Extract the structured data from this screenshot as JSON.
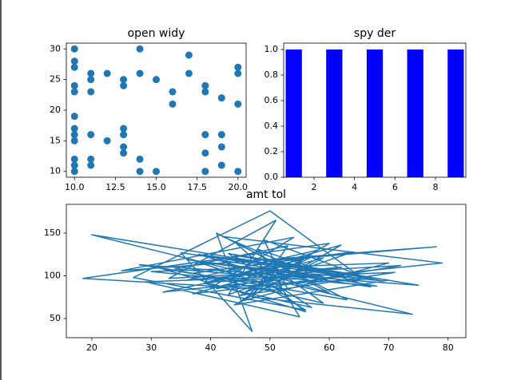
{
  "chart_data": [
    {
      "type": "scatter",
      "title": "open widy",
      "color": "#1f77b4",
      "x": [
        10,
        10,
        10,
        10,
        10,
        10,
        10,
        10,
        10,
        10,
        10,
        10,
        11,
        11,
        11,
        11,
        11,
        11,
        12,
        12,
        13,
        13,
        13,
        13,
        13,
        13,
        14,
        14,
        14,
        14,
        15,
        15,
        16,
        16,
        17,
        17,
        18,
        18,
        18,
        18,
        18,
        19,
        19,
        19,
        19,
        20,
        20,
        20,
        20
      ],
      "y": [
        30,
        28,
        27,
        24,
        23,
        19,
        17,
        16,
        15,
        12,
        11,
        10,
        26,
        25,
        23,
        16,
        12,
        11,
        26,
        15,
        25,
        24,
        17,
        16,
        14,
        13,
        30,
        26,
        12,
        10,
        25,
        10,
        23,
        21,
        29,
        26,
        24,
        23,
        16,
        13,
        10,
        22,
        16,
        14,
        11,
        27,
        26,
        21,
        10
      ],
      "xlim": [
        9.5,
        20.5
      ],
      "xticks": [
        {
          "value": 10,
          "label": "10.0"
        },
        {
          "value": 12.5,
          "label": "12.5"
        },
        {
          "value": 15,
          "label": "15.0"
        },
        {
          "value": 17.5,
          "label": "17.5"
        },
        {
          "value": 20,
          "label": "20.0"
        }
      ],
      "ylim": [
        9.05,
        30.95
      ],
      "yticks": [
        10,
        15,
        20,
        25,
        30
      ]
    },
    {
      "type": "bar",
      "title": "spy der",
      "color": "#0000ff",
      "x": [
        1,
        3,
        5,
        7,
        9
      ],
      "values": [
        1,
        1,
        1,
        1,
        1
      ],
      "xlim": [
        0.5,
        9.5
      ],
      "xticks": [
        2,
        4,
        6,
        8
      ],
      "ylim": [
        0,
        1.05
      ],
      "yticks": [
        {
          "value": 0,
          "label": "0.0"
        },
        {
          "value": 0.2,
          "label": "0.2"
        },
        {
          "value": 0.4,
          "label": "0.4"
        },
        {
          "value": 0.6,
          "label": "0.6"
        },
        {
          "value": 0.8,
          "label": "0.8"
        },
        {
          "value": 1,
          "label": "1.0"
        }
      ]
    },
    {
      "type": "line",
      "title": "amt tol",
      "color": "#1f77b4",
      "x": [
        48,
        55,
        41,
        62,
        36,
        58,
        45,
        70,
        30,
        52,
        44,
        60,
        38,
        65,
        50,
        27,
        56,
        42,
        68,
        34,
        53,
        47,
        74,
        20,
        61,
        39,
        57,
        46,
        72,
        33,
        51,
        43,
        64,
        37,
        59,
        49,
        78,
        25,
        54,
        40,
        66,
        35,
        47,
        41,
        63,
        31,
        56,
        44,
        69,
        38,
        52,
        18.5,
        60,
        45,
        71,
        29,
        55,
        48,
        67,
        36,
        58,
        42,
        79,
        32,
        50,
        46,
        62,
        39,
        57,
        43,
        75,
        28,
        53,
        49,
        65,
        37,
        59,
        44,
        70,
        51
      ],
      "y": [
        100,
        120,
        85,
        110,
        95,
        130,
        70,
        115,
        105,
        90,
        140,
        80,
        125,
        100,
        176,
        98,
        60,
        118,
        88,
        108,
        135,
        75,
        55,
        148,
        102,
        92,
        122,
        82,
        112,
        97,
        165,
        78,
        128,
        103,
        68,
        117,
        134,
        106,
        145,
        86,
        96,
        127,
        35,
        150,
        72,
        110,
        58,
        124,
        94,
        116,
        83,
        97,
        138,
        77,
        104,
        93,
        52,
        131,
        87,
        119,
        99,
        146,
        115,
        81,
        107,
        73,
        136,
        91,
        63,
        126,
        89,
        113,
        84,
        142,
        101,
        79,
        121,
        66,
        95,
        114
      ],
      "xlim": [
        15.7,
        83
      ],
      "xticks": [
        20,
        30,
        40,
        50,
        60,
        70,
        80
      ],
      "ylim": [
        27.6,
        183.6
      ],
      "yticks": [
        50,
        100,
        150
      ]
    }
  ]
}
